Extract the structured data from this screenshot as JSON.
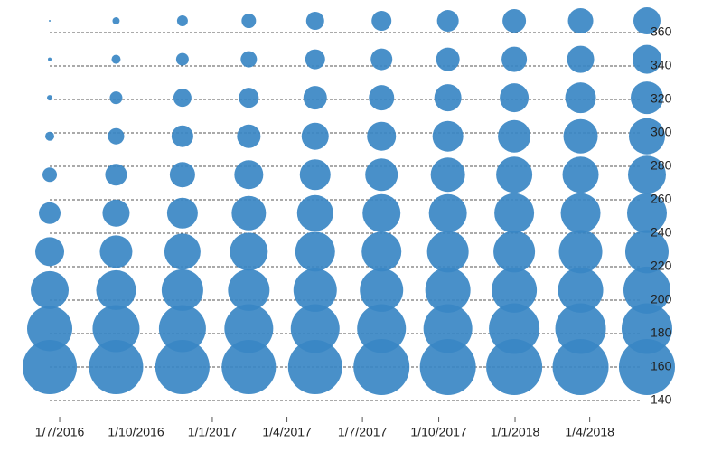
{
  "chart_data": {
    "type": "bubble",
    "x": [
      "2016-06-19",
      "2016-09-07",
      "2016-11-26",
      "2017-02-14",
      "2017-05-05",
      "2017-07-24",
      "2017-10-12",
      "2017-12-31",
      "2018-03-21",
      "2018-06-09"
    ],
    "xlim": [
      "2016-06-07",
      "2018-06-21"
    ],
    "xticks": [
      {
        "value": "2016-07-01",
        "label": "1/7/2016"
      },
      {
        "value": "2016-10-01",
        "label": "1/10/2016"
      },
      {
        "value": "2017-01-01",
        "label": "1/1/2017"
      },
      {
        "value": "2017-04-01",
        "label": "1/4/2017"
      },
      {
        "value": "2017-07-01",
        "label": "1/7/2017"
      },
      {
        "value": "2017-10-01",
        "label": "1/10/2017"
      },
      {
        "value": "2018-01-01",
        "label": "1/1/2018"
      },
      {
        "value": "2018-04-01",
        "label": "1/4/2018"
      }
    ],
    "ylim": [
      140,
      360
    ],
    "yticks": [
      140,
      160,
      180,
      200,
      220,
      240,
      260,
      280,
      300,
      320,
      340,
      360
    ],
    "grid": true,
    "color": "#3a87c4",
    "series": [
      {
        "values": [
          160,
          160,
          160,
          160,
          160,
          160,
          160,
          160,
          160,
          160
        ],
        "sizes": [
          30,
          30,
          30,
          30,
          30,
          31,
          31,
          31,
          31,
          31
        ]
      },
      {
        "values": [
          183,
          183,
          183,
          183,
          183,
          183,
          183,
          183,
          183,
          183
        ],
        "sizes": [
          25,
          26,
          26,
          27,
          27,
          27,
          27,
          28,
          28,
          28
        ]
      },
      {
        "values": [
          206,
          206,
          206,
          206,
          206,
          206,
          206,
          206,
          206,
          206
        ],
        "sizes": [
          21,
          22,
          23,
          23,
          24,
          24,
          25,
          25,
          25,
          26
        ]
      },
      {
        "values": [
          229,
          229,
          229,
          229,
          229,
          229,
          229,
          229,
          229,
          229
        ],
        "sizes": [
          16,
          18,
          20,
          21,
          22,
          22,
          23,
          23,
          24,
          24
        ]
      },
      {
        "values": [
          252,
          252,
          252,
          252,
          252,
          252,
          252,
          252,
          252,
          252
        ],
        "sizes": [
          12,
          15,
          17,
          19,
          20,
          21,
          21,
          22,
          22,
          22
        ]
      },
      {
        "values": [
          275,
          275,
          275,
          275,
          275,
          275,
          275,
          275,
          275,
          275
        ],
        "sizes": [
          8,
          12,
          14,
          16,
          17,
          18,
          19,
          20,
          20,
          21
        ]
      },
      {
        "values": [
          298,
          298,
          298,
          298,
          298,
          298,
          298,
          298,
          298,
          298
        ],
        "sizes": [
          5,
          9,
          12,
          13,
          15,
          16,
          17,
          18,
          19,
          20
        ]
      },
      {
        "values": [
          321,
          321,
          321,
          321,
          321,
          321,
          321,
          321,
          321,
          321
        ],
        "sizes": [
          3,
          7,
          10,
          11,
          13,
          14,
          15,
          16,
          17,
          18
        ]
      },
      {
        "values": [
          344,
          344,
          344,
          344,
          344,
          344,
          344,
          344,
          344,
          344
        ],
        "sizes": [
          2,
          5,
          7,
          9,
          11,
          12,
          13,
          14,
          15,
          16
        ]
      },
      {
        "values": [
          367,
          367,
          367,
          367,
          367,
          367,
          367,
          367,
          367,
          367
        ],
        "sizes": [
          1,
          4,
          6,
          8,
          10,
          11,
          12,
          13,
          14,
          15
        ]
      }
    ]
  }
}
